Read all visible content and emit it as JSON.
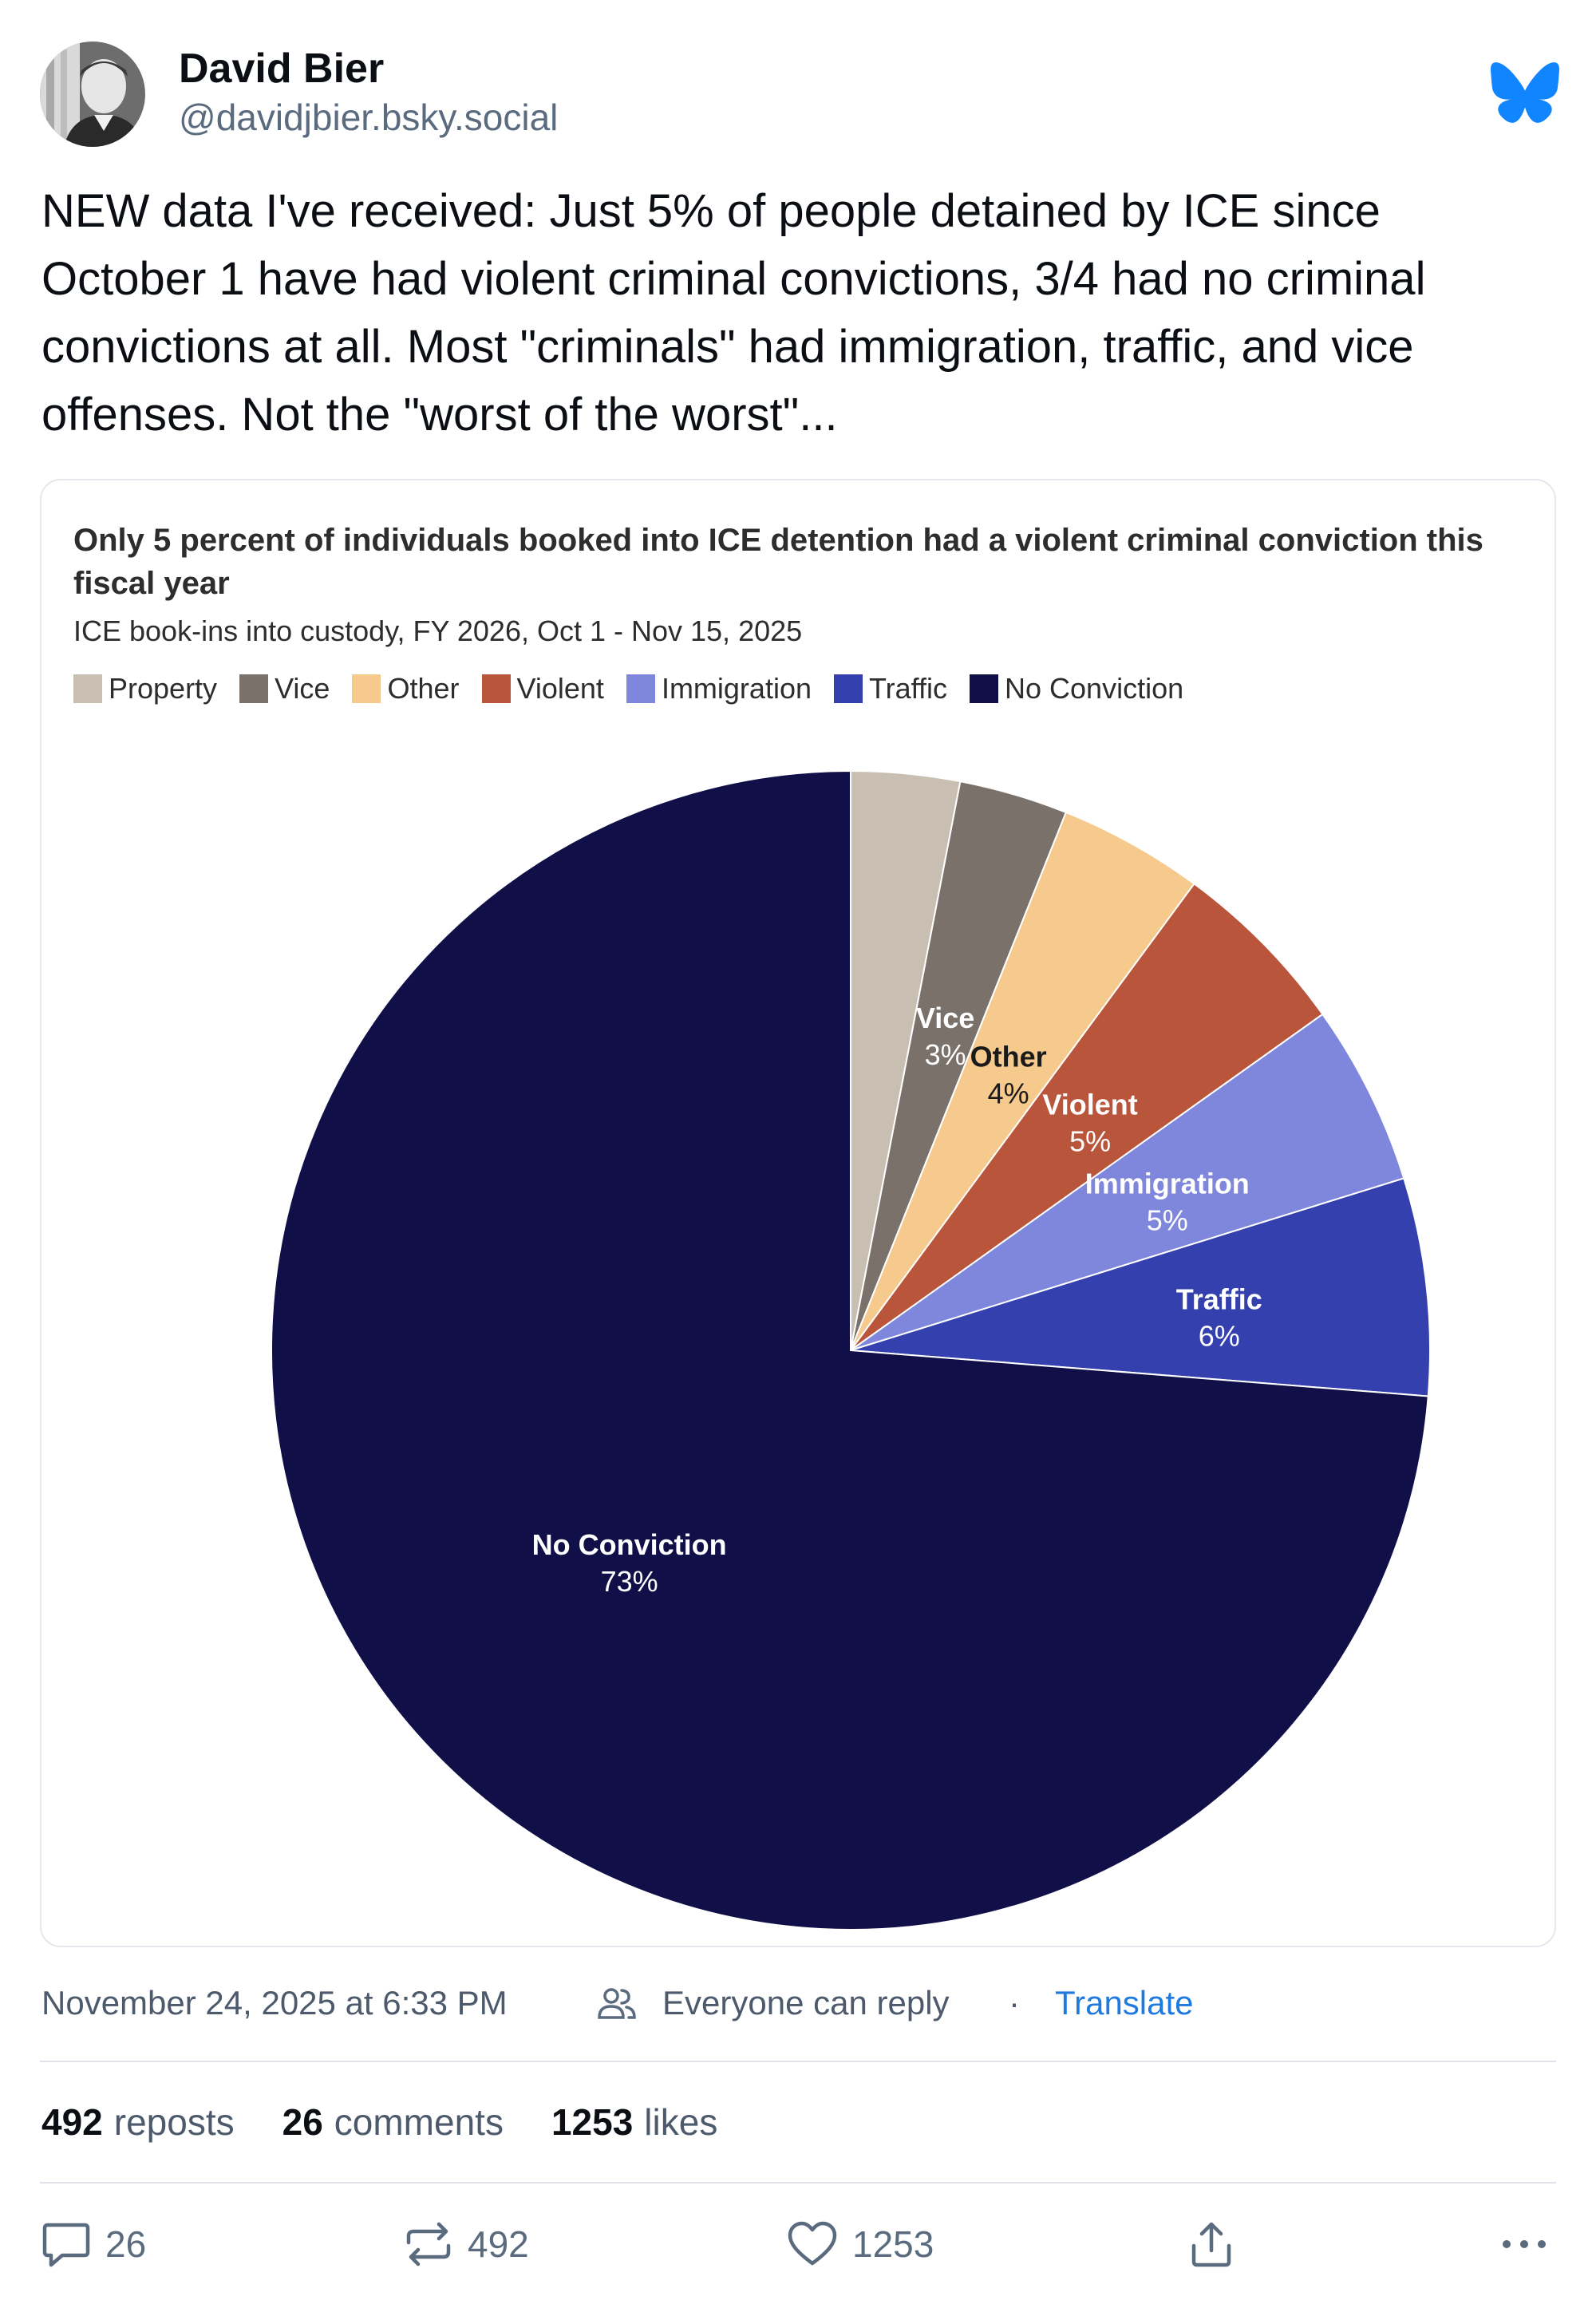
{
  "author": {
    "name": "David Bier",
    "handle": "@davidjbier.bsky.social"
  },
  "brand": {
    "logo_icon": "butterfly-icon",
    "accent": "#1185fe"
  },
  "post": {
    "text": "NEW data I've received: Just 5% of people detained by ICE since October 1 have had violent criminal convictions, 3/4 had no criminal convictions at all. Most \"criminals\" had immigration, traffic, and vice offenses. Not the \"worst of the worst\"..."
  },
  "chart_data": {
    "type": "pie",
    "title": "Only 5 percent of individuals booked into ICE detention had a violent criminal conviction this fiscal year",
    "subtitle": "ICE book-ins into custody, FY 2026, Oct 1 - Nov 15, 2025",
    "legend_position": "top-left",
    "start_angle_deg": 0,
    "direction": "clockwise",
    "slices": [
      {
        "label": "Property",
        "value": 3,
        "color": "#c8beb2",
        "show_label": false,
        "pct_text": ""
      },
      {
        "label": "Vice",
        "value": 3,
        "color": "#7a716a",
        "show_label": true,
        "pct_text": "3%"
      },
      {
        "label": "Other",
        "value": 4,
        "color": "#f5ca8c",
        "show_label": true,
        "pct_text": "4%"
      },
      {
        "label": "Violent",
        "value": 5,
        "color": "#b8553a",
        "show_label": true,
        "pct_text": "5%"
      },
      {
        "label": "Immigration",
        "value": 5,
        "color": "#7f87dc",
        "show_label": true,
        "pct_text": "5%"
      },
      {
        "label": "Traffic",
        "value": 6,
        "color": "#3340ae",
        "show_label": true,
        "pct_text": "6%"
      },
      {
        "label": "No Conviction",
        "value": 73,
        "color": "#110f48",
        "show_label": true,
        "pct_text": "73%"
      }
    ]
  },
  "meta": {
    "date": "November 24, 2025 at 6:33 PM",
    "reply_setting": "Everyone can reply",
    "separator": "·",
    "translate": "Translate"
  },
  "stats": {
    "reposts_count": "492",
    "reposts_label": "reposts",
    "comments_count": "26",
    "comments_label": "comments",
    "likes_count": "1253",
    "likes_label": "likes"
  },
  "actions": {
    "reply_count": "26",
    "repost_count": "492",
    "like_count": "1253"
  }
}
